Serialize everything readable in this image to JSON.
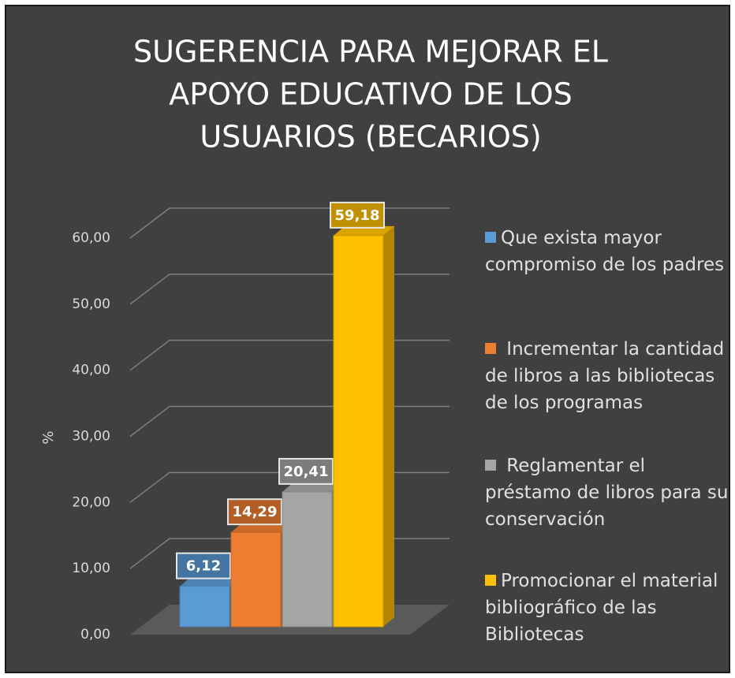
{
  "chart_data": {
    "type": "bar3d",
    "title": [
      "SUGERENCIA PARA MEJORAR EL",
      "APOYO EDUCATIVO DE LOS",
      "USUARIOS (BECARIOS)"
    ],
    "ylabel": "%",
    "ylim": [
      0,
      60
    ],
    "yticks": [
      {
        "value": 0,
        "label": "0,00"
      },
      {
        "value": 10,
        "label": "10,00"
      },
      {
        "value": 20,
        "label": "20,00"
      },
      {
        "value": 30,
        "label": "30,00"
      },
      {
        "value": 40,
        "label": "40,00"
      },
      {
        "value": 50,
        "label": "50,00"
      },
      {
        "value": 60,
        "label": "60,00"
      }
    ],
    "grid": true,
    "legend": "right",
    "series": [
      {
        "name": "Que exista mayor compromiso de los padres",
        "color": "#5b9bd5",
        "values": [
          6.12
        ],
        "value_labels": [
          "6,12"
        ]
      },
      {
        "name": " Incrementar la cantidad de libros a las bibliotecas de los programas",
        "color": "#ed7d31",
        "values": [
          14.29
        ],
        "value_labels": [
          "14,29"
        ]
      },
      {
        "name": " Reglamentar el préstamo de libros para su conservación",
        "color": "#a5a5a5",
        "values": [
          20.41
        ],
        "value_labels": [
          "20,41"
        ]
      },
      {
        "name": "Promocionar el material bibliográfico de las Bibliotecas",
        "color": "#ffc000",
        "values": [
          59.18
        ],
        "value_labels": [
          "59,18"
        ]
      }
    ]
  }
}
